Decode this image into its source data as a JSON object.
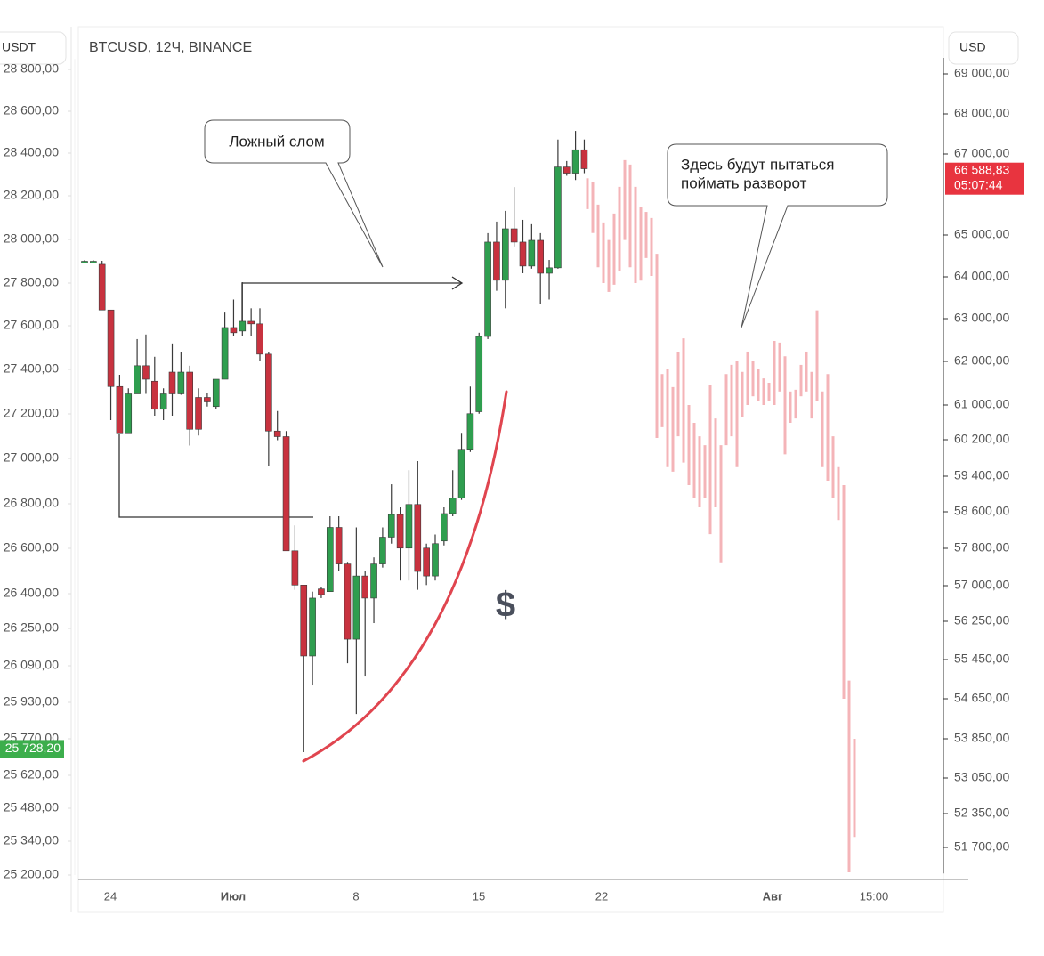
{
  "chart_data": {
    "type": "candlestick",
    "title": "BTCUSD, 12Ч, BINANCE",
    "left_axis_label": "USDT",
    "right_axis_label": "USD",
    "up_color": "#2f9e4f",
    "down_color": "#c8323f",
    "x_labels": [
      "24",
      "Июл",
      "8",
      "15",
      "22",
      "Авг",
      "15:00"
    ],
    "ylim": [
      25200,
      28850
    ],
    "yticks": [
      {
        "value": 28800,
        "label": "28 800,00"
      },
      {
        "value": 28600,
        "label": "28 600,00"
      },
      {
        "value": 28400,
        "label": "28 400,00"
      },
      {
        "value": 28200,
        "label": "28 200,00"
      },
      {
        "value": 28000,
        "label": "28 000,00"
      },
      {
        "value": 27800,
        "label": "27 800,00"
      },
      {
        "value": 27600,
        "label": "27 600,00"
      },
      {
        "value": 27400,
        "label": "27 400,00"
      },
      {
        "value": 27200,
        "label": "27 200,00"
      },
      {
        "value": 27000,
        "label": "27 000,00"
      },
      {
        "value": 26800,
        "label": "26 800,00"
      },
      {
        "value": 26600,
        "label": "26 600,00"
      },
      {
        "value": 26400,
        "label": "26 400,00"
      },
      {
        "value": 26250,
        "label": "26 250,00"
      },
      {
        "value": 26090,
        "label": "26 090,00"
      },
      {
        "value": 25930,
        "label": "25 930,00"
      },
      {
        "value": 25770,
        "label": "25 770,00"
      },
      {
        "value": 25620,
        "label": "25 620,00"
      },
      {
        "value": 25480,
        "label": "25 480,00"
      },
      {
        "value": 25340,
        "label": "25 340,00"
      },
      {
        "value": 25200,
        "label": "25 200,00"
      }
    ],
    "y2lim": [
      51200,
      69400
    ],
    "y2ticks": [
      {
        "value": 69000,
        "label": "69 000,00"
      },
      {
        "value": 68000,
        "label": "68 000,00"
      },
      {
        "value": 67000,
        "label": "67 000,00"
      },
      {
        "value": 65000,
        "label": "65 000,00"
      },
      {
        "value": 64000,
        "label": "64 000,00"
      },
      {
        "value": 63000,
        "label": "63 000,00"
      },
      {
        "value": 62000,
        "label": "62 000,00"
      },
      {
        "value": 61000,
        "label": "61 000,00"
      },
      {
        "value": 60200,
        "label": "60 200,00"
      },
      {
        "value": 59400,
        "label": "59 400,00"
      },
      {
        "value": 58600,
        "label": "58 600,00"
      },
      {
        "value": 57800,
        "label": "57 800,00"
      },
      {
        "value": 57000,
        "label": "57 000,00"
      },
      {
        "value": 56250,
        "label": "56 250,00"
      },
      {
        "value": 55450,
        "label": "55 450,00"
      },
      {
        "value": 54650,
        "label": "54 650,00"
      },
      {
        "value": 53850,
        "label": "53 850,00"
      },
      {
        "value": 53050,
        "label": "53 050,00"
      },
      {
        "value": 52350,
        "label": "52 350,00"
      },
      {
        "value": 51700,
        "label": "51 700,00"
      }
    ],
    "candles": {
      "open": [
        27900,
        27900,
        27886,
        27674,
        27323,
        27111,
        27290,
        27417,
        27347,
        27221,
        27388,
        27290,
        27388,
        27274,
        27274,
        27233,
        27356,
        27592,
        27576,
        27621,
        27609,
        27470,
        27123,
        27098,
        26589,
        26438,
        26132,
        26421,
        26409,
        26694,
        26531,
        26204,
        26478,
        26381,
        26531,
        26650,
        26752,
        26601,
        26797,
        26601,
        26478,
        26633,
        26756,
        26825,
        27041,
        27210,
        27551,
        27988,
        27813,
        28049,
        27988,
        27878,
        27996,
        27845,
        27870,
        28335,
        28306,
        28416
      ],
      "high": [
        27905,
        27905,
        27902,
        27674,
        27376,
        27315,
        27539,
        27560,
        27458,
        27315,
        27519,
        27478,
        27417,
        27315,
        27294,
        27347,
        27662,
        27723,
        27804,
        27682,
        27682,
        27478,
        27213,
        27123,
        26703,
        26438,
        26409,
        26430,
        26744,
        26744,
        26540,
        26694,
        26498,
        26560,
        26694,
        26886,
        26784,
        26948,
        26988,
        26621,
        26662,
        26784,
        26948,
        27111,
        27323,
        27568,
        28029,
        28082,
        28131,
        28241,
        28090,
        28070,
        28029,
        27906,
        28465,
        28363,
        28506,
        28465
      ],
      "low": [
        27895,
        27895,
        27674,
        27172,
        27111,
        27111,
        27290,
        27290,
        27192,
        27172,
        27192,
        27286,
        27058,
        27103,
        27233,
        27221,
        27356,
        27551,
        27551,
        27551,
        27437,
        26968,
        27082,
        26589,
        26417,
        25715,
        26004,
        26381,
        26409,
        26498,
        26101,
        25879,
        26043,
        26273,
        26515,
        26621,
        26458,
        26458,
        26417,
        26438,
        26458,
        26613,
        26744,
        26817,
        27029,
        27201,
        27539,
        27764,
        27682,
        27968,
        27845,
        27866,
        27702,
        27723,
        27866,
        28294,
        28274,
        28306
      ],
      "close": [
        27900,
        27900,
        27674,
        27323,
        27111,
        27290,
        27417,
        27356,
        27221,
        27290,
        27290,
        27388,
        27131,
        27131,
        27254,
        27356,
        27592,
        27568,
        27621,
        27609,
        27470,
        27123,
        27098,
        26589,
        26438,
        26132,
        26381,
        26396,
        26694,
        26531,
        26204,
        26478,
        26381,
        26531,
        26650,
        26752,
        26601,
        26797,
        26498,
        26478,
        26621,
        26756,
        26825,
        27041,
        27201,
        27551,
        27988,
        27813,
        28049,
        27988,
        27878,
        27996,
        27845,
        27870,
        28335,
        28306,
        28416,
        28327
      ]
    },
    "projection": {
      "axis": "y2",
      "color": "#f4b4b8",
      "high": [
        66400,
        66300,
        65750,
        65310,
        64880,
        65530,
        66190,
        66850,
        66740,
        66190,
        65700,
        65570,
        65420,
        64550,
        61710,
        61820,
        61410,
        62230,
        62540,
        61000,
        60590,
        60280,
        60080,
        61470,
        60690,
        60080,
        61710,
        61920,
        62020,
        61760,
        62230,
        62020,
        61820,
        61610,
        61510,
        62480,
        62440,
        62120,
        61310,
        61350,
        61920,
        62230,
        61760,
        63200,
        61310,
        61710,
        60280,
        59600,
        59200,
        55020,
        53850
      ],
      "low": [
        65640,
        65050,
        64230,
        63850,
        63640,
        63810,
        64130,
        64880,
        64230,
        63850,
        63910,
        64450,
        64020,
        60240,
        60490,
        59600,
        59500,
        60280,
        59700,
        59200,
        58900,
        58700,
        58900,
        58110,
        58700,
        57500,
        60080,
        60280,
        59600,
        60730,
        61000,
        61200,
        61100,
        61000,
        61100,
        61000,
        61310,
        59880,
        60590,
        60690,
        61200,
        61310,
        60690,
        61100,
        59600,
        59300,
        58900,
        58420,
        54650,
        51220,
        51900
      ]
    },
    "last_price": {
      "value": 25728.2,
      "label": "25 728,20"
    },
    "projection_price": {
      "value": 66588.83,
      "label": "66 588,83"
    },
    "countdown": "05:07:44",
    "annotations": [
      "Ложный слом",
      "Здесь будут пытаться",
      "поймать разворот"
    ],
    "watermark": "$"
  }
}
